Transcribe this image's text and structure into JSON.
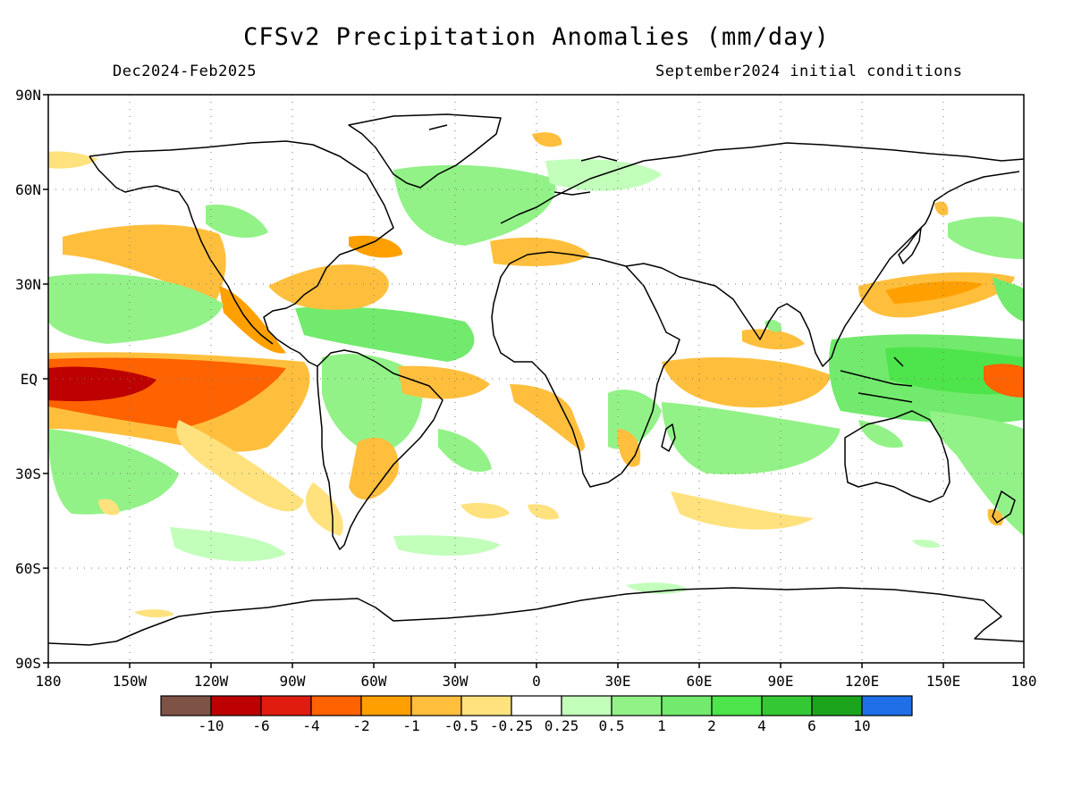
{
  "header": {
    "title": "CFSv2 Precipitation Anomalies (mm/day)",
    "period": "Dec2024-Feb2025",
    "initial_conditions": "September2024 initial conditions"
  },
  "map": {
    "lat_labels": [
      "90N",
      "60N",
      "30N",
      "EQ",
      "30S",
      "60S",
      "90S"
    ],
    "lon_labels": [
      "180",
      "150W",
      "120W",
      "90W",
      "60W",
      "30W",
      "0",
      "30E",
      "60E",
      "90E",
      "120E",
      "150E",
      "180"
    ],
    "gridlines": "dotted",
    "coastlines": "black"
  },
  "colorbar": {
    "colors": [
      "#7f5246",
      "#bd0000",
      "#e01c0e",
      "#ff6200",
      "#ffa000",
      "#ffbf3c",
      "#ffe27e",
      "#ffffff",
      "#c2ffbb",
      "#92f287",
      "#72ea6d",
      "#4ee44b",
      "#34c934",
      "#1ca41c",
      "#1e6fe8"
    ],
    "labels": [
      "-10",
      "-6",
      "-4",
      "-2",
      "-1",
      "-0.5",
      "-0.25",
      "0.25",
      "0.5",
      "1",
      "2",
      "4",
      "6",
      "10"
    ]
  },
  "anomaly_regions": [
    {
      "name": "central-pacific-dry",
      "color": "#ff6200"
    },
    {
      "name": "central-pacific-dry-core",
      "color": "#bd0000"
    },
    {
      "name": "west-pacific-wet",
      "color": "#4ee44b"
    },
    {
      "name": "north-pacific-dry",
      "color": "#ffbf3c"
    },
    {
      "name": "east-asia-dry",
      "color": "#ffa000"
    },
    {
      "name": "indian-ocean-dry",
      "color": "#ffa000"
    },
    {
      "name": "brazil-wet",
      "color": "#92f287"
    },
    {
      "name": "caribbean-wet",
      "color": "#72ea6d"
    },
    {
      "name": "north-atlantic-dry",
      "color": "#ffa000"
    },
    {
      "name": "australia-east-wet",
      "color": "#92f287"
    }
  ]
}
